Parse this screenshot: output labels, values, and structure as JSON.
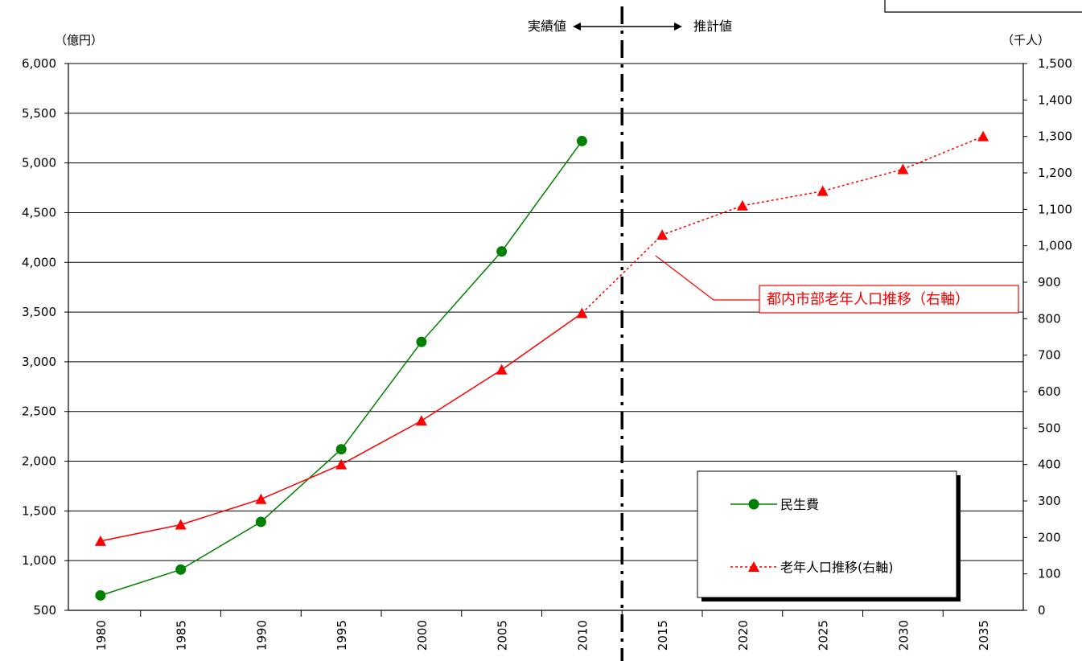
{
  "chart_data": {
    "type": "line",
    "x": [
      1980,
      1985,
      1990,
      1995,
      2000,
      2005,
      2010,
      2015,
      2020,
      2025,
      2030,
      2035
    ],
    "x_tick_labels": [
      "1980",
      "1985",
      "1990",
      "1995",
      "2000",
      "2005",
      "2010",
      "2015",
      "2020",
      "2025",
      "2030",
      "2035"
    ],
    "left_axis": {
      "unit_label": "（億円）",
      "ylim": [
        500,
        6000
      ],
      "ticks": [
        500,
        1000,
        1500,
        2000,
        2500,
        3000,
        3500,
        4000,
        4500,
        5000,
        5500,
        6000
      ],
      "tick_labels": [
        "500",
        "1,000",
        "1,500",
        "2,000",
        "2,500",
        "3,000",
        "3,500",
        "4,000",
        "4,500",
        "5,000",
        "5,500",
        "6,000"
      ]
    },
    "right_axis": {
      "unit_label": "（千人）",
      "ylim": [
        0,
        1500
      ],
      "ticks": [
        0,
        100,
        200,
        300,
        400,
        500,
        600,
        700,
        800,
        900,
        1000,
        1100,
        1200,
        1300,
        1400,
        1500
      ],
      "tick_labels": [
        "0",
        "100",
        "200",
        "300",
        "400",
        "500",
        "600",
        "700",
        "800",
        "900",
        "1,000",
        "1,100",
        "1,200",
        "1,300",
        "1,400",
        "1,500"
      ]
    },
    "grid": true,
    "series": [
      {
        "name": "民生費",
        "axis": "left",
        "color": "#008000",
        "marker": "circle",
        "x": [
          1980,
          1985,
          1990,
          1995,
          2000,
          2005,
          2010
        ],
        "values": [
          650,
          910,
          1390,
          2120,
          3200,
          4110,
          5220
        ]
      },
      {
        "name": "老年人口推移(右軸)",
        "axis": "right",
        "color": "#ff0000",
        "marker": "triangle",
        "x": [
          1980,
          1985,
          1990,
          1995,
          2000,
          2005,
          2010,
          2015,
          2020,
          2025,
          2030,
          2035
        ],
        "values": [
          190,
          235,
          305,
          400,
          520,
          660,
          815,
          1030,
          1110,
          1150,
          1210,
          1300
        ],
        "dashed_from": 2010
      }
    ],
    "divider": {
      "between": [
        2010,
        2015
      ],
      "left_label": "実績値",
      "right_label": "推計値"
    },
    "callout": {
      "text": "都内市部老年人口推移（右軸）",
      "color": "#ff0000"
    },
    "legend": {
      "placement": "bottom-right"
    }
  }
}
